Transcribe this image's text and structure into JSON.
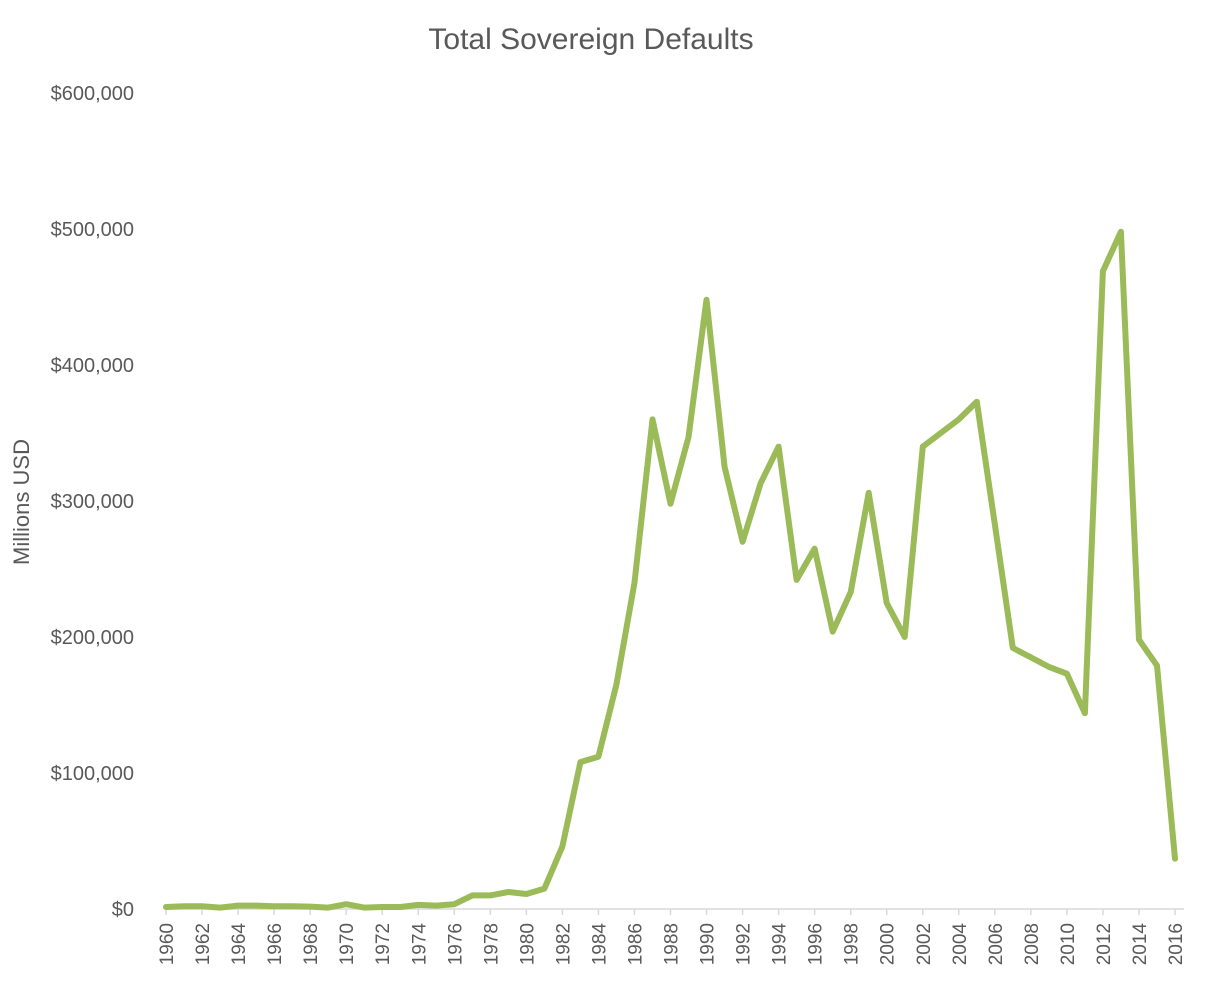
{
  "chart_data": {
    "type": "line",
    "title": "Total Sovereign Defaults",
    "xlabel": "",
    "ylabel": "Millions USD",
    "ylim": [
      0,
      600000
    ],
    "y_ticks": [
      0,
      100000,
      200000,
      300000,
      400000,
      500000,
      600000
    ],
    "y_tick_labels": [
      "$0",
      "$100,000",
      "$200,000",
      "$300,000",
      "$400,000",
      "$500,000",
      "$600,000"
    ],
    "x_tick_labels": [
      "1960",
      "1962",
      "1964",
      "1966",
      "1968",
      "1970",
      "1972",
      "1974",
      "1976",
      "1978",
      "1980",
      "1982",
      "1984",
      "1986",
      "1988",
      "1990",
      "1992",
      "1994",
      "1996",
      "1998",
      "2000",
      "2002",
      "2004",
      "2006",
      "2008",
      "2010",
      "2012",
      "2014",
      "2016"
    ],
    "grid": false,
    "legend": "none",
    "series_color": "#9BBB59",
    "x": [
      1960,
      1961,
      1962,
      1963,
      1964,
      1965,
      1966,
      1967,
      1968,
      1969,
      1970,
      1971,
      1972,
      1973,
      1974,
      1975,
      1976,
      1977,
      1978,
      1979,
      1980,
      1981,
      1982,
      1983,
      1984,
      1985,
      1986,
      1987,
      1988,
      1989,
      1990,
      1991,
      1992,
      1993,
      1994,
      1995,
      1996,
      1997,
      1998,
      1999,
      2000,
      2001,
      2002,
      2003,
      2004,
      2005,
      2006,
      2007,
      2008,
      2009,
      2010,
      2011,
      2012,
      2013,
      2014,
      2015,
      2016
    ],
    "values": [
      1500,
      2000,
      2000,
      1000,
      2500,
      2500,
      2000,
      2000,
      1800,
      1000,
      3500,
      1000,
      1500,
      1500,
      3000,
      2500,
      3500,
      10000,
      10000,
      12500,
      11000,
      15000,
      46000,
      108000,
      112000,
      165000,
      240000,
      360000,
      298000,
      347000,
      448000,
      325000,
      270000,
      313000,
      340000,
      242000,
      265000,
      204000,
      233000,
      306000,
      225000,
      200000,
      340000,
      350000,
      360000,
      373000,
      283000,
      192000,
      185000,
      178000,
      173000,
      144000,
      469000,
      498000,
      198000,
      179000,
      37000
    ]
  }
}
